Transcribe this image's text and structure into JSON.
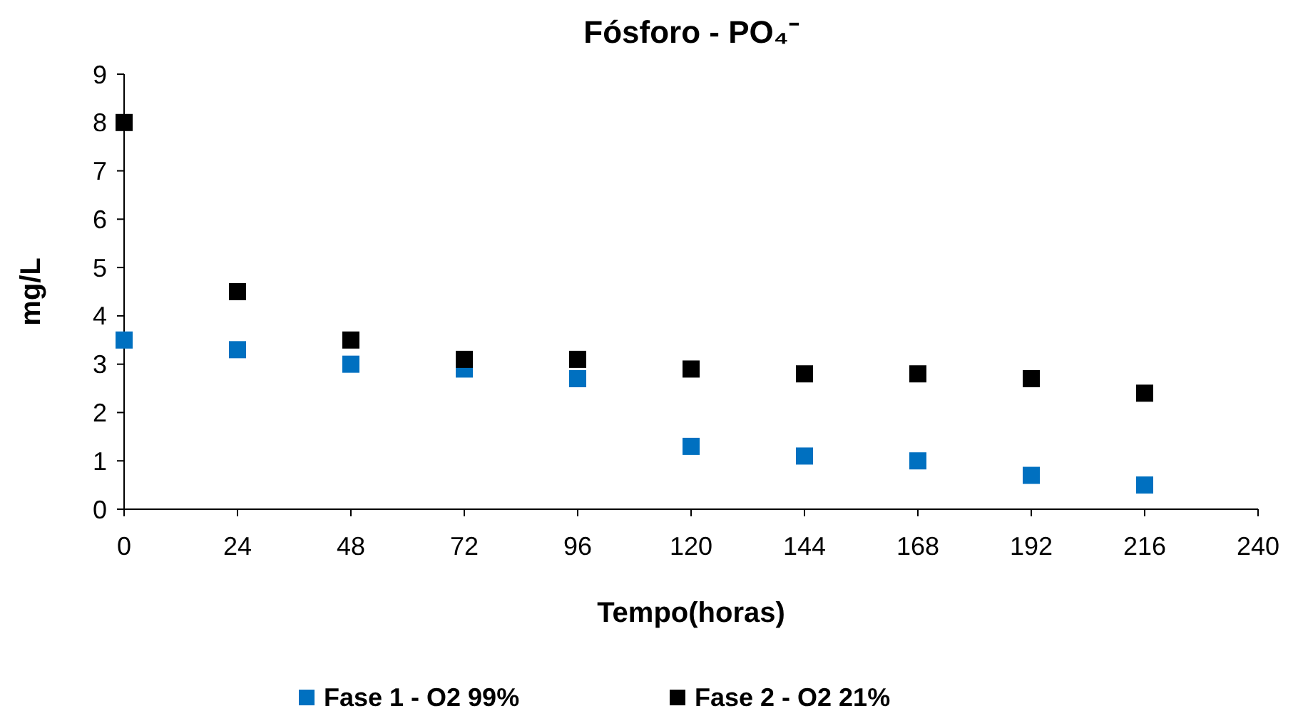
{
  "chart_data": {
    "type": "scatter",
    "title": "Fósforo - PO₄⁻",
    "xlabel": "Tempo(horas)",
    "ylabel": "mg/L",
    "x": [
      0,
      24,
      48,
      72,
      96,
      120,
      144,
      168,
      192,
      216
    ],
    "series": [
      {
        "name": "Fase 1 - O2 99%",
        "color": "#0070c0",
        "values": [
          3.5,
          3.3,
          3.0,
          2.9,
          2.7,
          1.3,
          1.1,
          1.0,
          0.7,
          0.5
        ]
      },
      {
        "name": "Fase 2 - O2 21%",
        "color": "#000000",
        "values": [
          8.0,
          4.5,
          3.5,
          3.1,
          3.1,
          2.9,
          2.8,
          2.8,
          2.7,
          2.4
        ]
      }
    ],
    "xlim": [
      0,
      240
    ],
    "xticks": [
      0,
      24,
      48,
      72,
      96,
      120,
      144,
      168,
      192,
      216,
      240
    ],
    "ylim": [
      0,
      9
    ],
    "yticks": [
      0,
      1,
      2,
      3,
      4,
      5,
      6,
      7,
      8,
      9
    ],
    "grid": false,
    "legend": "bottom",
    "marker": "square"
  }
}
